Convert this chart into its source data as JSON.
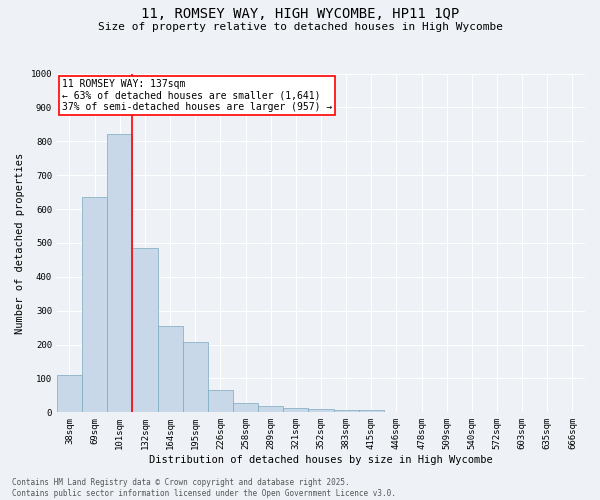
{
  "title_line1": "11, ROMSEY WAY, HIGH WYCOMBE, HP11 1QP",
  "title_line2": "Size of property relative to detached houses in High Wycombe",
  "xlabel": "Distribution of detached houses by size in High Wycombe",
  "ylabel": "Number of detached properties",
  "categories": [
    "38sqm",
    "69sqm",
    "101sqm",
    "132sqm",
    "164sqm",
    "195sqm",
    "226sqm",
    "258sqm",
    "289sqm",
    "321sqm",
    "352sqm",
    "383sqm",
    "415sqm",
    "446sqm",
    "478sqm",
    "509sqm",
    "540sqm",
    "572sqm",
    "603sqm",
    "635sqm",
    "666sqm"
  ],
  "values": [
    110,
    635,
    820,
    485,
    255,
    207,
    65,
    27,
    20,
    13,
    9,
    7,
    8,
    0,
    0,
    0,
    0,
    0,
    0,
    0,
    0
  ],
  "bar_color": "#c8d8e8",
  "bar_edgecolor": "#7aaabf",
  "vline_index": 2.5,
  "vline_color": "red",
  "ylim": [
    0,
    1000
  ],
  "yticks": [
    0,
    100,
    200,
    300,
    400,
    500,
    600,
    700,
    800,
    900,
    1000
  ],
  "annotation_title": "11 ROMSEY WAY: 137sqm",
  "annotation_line1": "← 63% of detached houses are smaller (1,641)",
  "annotation_line2": "37% of semi-detached houses are larger (957) →",
  "annotation_box_color": "red",
  "footer_line1": "Contains HM Land Registry data © Crown copyright and database right 2025.",
  "footer_line2": "Contains public sector information licensed under the Open Government Licence v3.0.",
  "background_color": "#eef2f6",
  "grid_color": "#ffffff",
  "title1_fontsize": 10,
  "title2_fontsize": 8,
  "ylabel_fontsize": 7.5,
  "xlabel_fontsize": 7.5,
  "tick_fontsize": 6.5,
  "annot_fontsize": 7,
  "footer_fontsize": 5.5
}
